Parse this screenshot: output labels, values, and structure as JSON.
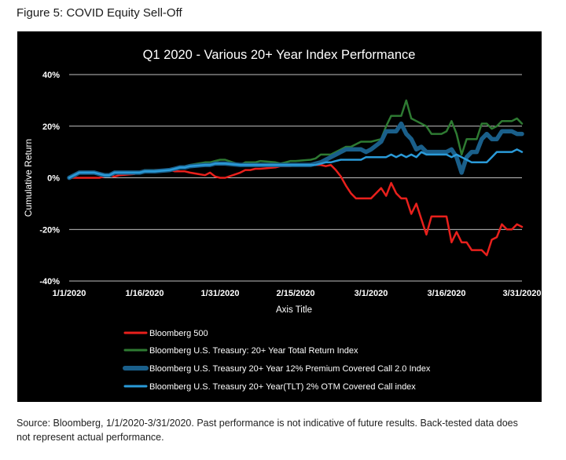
{
  "figure_title": "Figure 5: COVID Equity Sell-Off",
  "source_note": "Source: Bloomberg, 1/1/2020-3/31/2020. Past performance is not indicative of future results. Back-tested data does not represent actual performance.",
  "colors": {
    "background": "#000000",
    "grid": "#ffffff",
    "text": "#ffffff",
    "bloomberg500": "#e8201c",
    "treasury_tr": "#2e7a32",
    "treasury_12pct": "#1a5f8a",
    "treasury_tlt": "#2a9ad8"
  },
  "chart_data": {
    "type": "line",
    "title": "Q1 2020 - Various 20+ Year Index Performance",
    "xlabel": "Axis Title",
    "ylabel": "Cumulative Return",
    "ylim": [
      -40,
      40
    ],
    "yticks": [
      -40,
      -20,
      0,
      20,
      40
    ],
    "ytick_labels": [
      "-40%",
      "-20%",
      "0%",
      "20%",
      "40%"
    ],
    "xlim": [
      0,
      90
    ],
    "xtick_positions": [
      0,
      15,
      30,
      45,
      60,
      75,
      90
    ],
    "xtick_labels": [
      "1/1/2020",
      "1/16/2020",
      "1/31/2020",
      "2/15/2020",
      "3/1/2020",
      "3/16/2020",
      "3/31/2020"
    ],
    "legend_position": "bottom-left",
    "series": [
      {
        "name": "Bloomberg 500",
        "color_key": "bloomberg500",
        "stroke": 2.5,
        "x": [
          0,
          1,
          2,
          5,
          6,
          7,
          8,
          9,
          10,
          13,
          14,
          15,
          16,
          17,
          20,
          21,
          22,
          23,
          24,
          27,
          28,
          29,
          30,
          31,
          34,
          35,
          36,
          37,
          38,
          41,
          42,
          43,
          44,
          45,
          48,
          49,
          50,
          51,
          52,
          53,
          54,
          55,
          56,
          57,
          58,
          59,
          60,
          62,
          63,
          64,
          65,
          66,
          67,
          68,
          69,
          70,
          71,
          72,
          73,
          74,
          75,
          76,
          77,
          78,
          79,
          80,
          81,
          82,
          83,
          84,
          85,
          86,
          87,
          88,
          89,
          90
        ],
        "y": [
          0,
          0,
          0,
          0,
          0,
          0.5,
          1,
          0.5,
          1,
          1.5,
          2,
          2.5,
          2.5,
          3,
          3,
          2.5,
          2.5,
          2.5,
          2,
          1,
          2,
          0.5,
          0,
          0,
          2,
          3,
          3,
          3.5,
          3.5,
          4,
          4.5,
          4.5,
          4.5,
          5,
          5,
          5,
          5,
          4.5,
          5,
          3,
          0.5,
          -3,
          -6,
          -8,
          -8,
          -8,
          -8,
          -4,
          -7,
          -2,
          -6,
          -8,
          -8,
          -14,
          -10,
          -16,
          -22,
          -15,
          -15,
          -15,
          -15,
          -25,
          -21,
          -25,
          -25,
          -28,
          -28,
          -28,
          -30,
          -24,
          -23,
          -18,
          -20,
          -20,
          -18,
          -19
        ]
      },
      {
        "name": "Bloomberg U.S. Treasury: 20+ Year Total Return Index",
        "color_key": "treasury_tr",
        "stroke": 2.5,
        "x": [
          0,
          1,
          2,
          5,
          6,
          7,
          8,
          9,
          10,
          13,
          14,
          15,
          16,
          17,
          20,
          21,
          22,
          23,
          24,
          27,
          28,
          29,
          30,
          31,
          34,
          35,
          36,
          37,
          38,
          41,
          42,
          43,
          44,
          45,
          48,
          49,
          50,
          51,
          52,
          53,
          54,
          55,
          56,
          57,
          58,
          59,
          60,
          62,
          63,
          64,
          65,
          66,
          67,
          68,
          69,
          70,
          71,
          72,
          73,
          74,
          75,
          76,
          77,
          78,
          79,
          80,
          81,
          82,
          83,
          84,
          85,
          86,
          87,
          88,
          89,
          90
        ],
        "y": [
          0,
          1,
          2,
          2,
          1.5,
          1,
          1,
          2,
          2,
          2,
          2,
          3,
          3,
          3,
          3,
          3.5,
          4,
          4.5,
          5,
          6,
          6,
          6.5,
          7,
          7,
          5,
          6,
          6,
          6,
          6.5,
          6,
          5.5,
          6,
          6.5,
          6.5,
          7,
          7.5,
          9,
          9,
          9,
          10,
          11,
          12,
          12,
          13,
          14,
          14,
          14,
          15,
          20,
          24,
          24,
          24,
          30,
          23,
          22,
          21,
          20,
          17,
          17,
          17,
          18,
          22,
          17,
          9,
          15,
          15,
          15,
          21,
          21,
          19,
          20,
          22,
          22,
          22,
          23,
          21
        ]
      },
      {
        "name": "Bloomberg U.S. Treasury 20+ Year 12% Premium Covered Call 2.0 Index",
        "color_key": "treasury_12pct",
        "stroke": 5.5,
        "x": [
          0,
          1,
          2,
          5,
          6,
          7,
          8,
          9,
          10,
          13,
          14,
          15,
          16,
          17,
          20,
          21,
          22,
          23,
          24,
          27,
          28,
          29,
          30,
          31,
          34,
          35,
          36,
          37,
          38,
          41,
          42,
          43,
          44,
          45,
          48,
          49,
          50,
          51,
          52,
          53,
          54,
          55,
          56,
          57,
          58,
          59,
          60,
          62,
          63,
          64,
          65,
          66,
          67,
          68,
          69,
          70,
          71,
          72,
          73,
          74,
          75,
          76,
          77,
          78,
          79,
          80,
          81,
          82,
          83,
          84,
          85,
          86,
          87,
          88,
          89,
          90
        ],
        "y": [
          0,
          1,
          2,
          2,
          1.5,
          1,
          1,
          2,
          2,
          2,
          2,
          2.5,
          2.5,
          2.5,
          3,
          3.5,
          4,
          4,
          4.5,
          5,
          5,
          5.5,
          5.5,
          5.5,
          5,
          5,
          5,
          5,
          5,
          5,
          5,
          5,
          5,
          5,
          5,
          5.5,
          6,
          7,
          8,
          9,
          10,
          11,
          11,
          11,
          11,
          10,
          11,
          14,
          18,
          18,
          18,
          21,
          17,
          15,
          11,
          12,
          10,
          10,
          10,
          10,
          10,
          11,
          8,
          2,
          8,
          10,
          10,
          15,
          17,
          15,
          15,
          18,
          18,
          18,
          17,
          17
        ]
      },
      {
        "name": "Bloomberg U.S. Treasury 20+ Year(TLT) 2% OTM Covered Call index",
        "color_key": "treasury_tlt",
        "stroke": 2.5,
        "x": [
          0,
          1,
          2,
          5,
          6,
          7,
          8,
          9,
          10,
          13,
          14,
          15,
          16,
          17,
          20,
          21,
          22,
          23,
          24,
          27,
          28,
          29,
          30,
          31,
          34,
          35,
          36,
          37,
          38,
          41,
          42,
          43,
          44,
          45,
          48,
          49,
          50,
          51,
          52,
          53,
          54,
          55,
          56,
          57,
          58,
          59,
          60,
          62,
          63,
          64,
          65,
          66,
          67,
          68,
          69,
          70,
          71,
          72,
          73,
          74,
          75,
          76,
          77,
          78,
          79,
          80,
          81,
          82,
          83,
          84,
          85,
          86,
          87,
          88,
          89,
          90
        ],
        "y": [
          0,
          1,
          2,
          2,
          1.5,
          1,
          1,
          2,
          2,
          2,
          2,
          2.5,
          2.5,
          2.5,
          3,
          3.5,
          4,
          4,
          4.5,
          5,
          5,
          5.5,
          5.5,
          5.5,
          5,
          5,
          5,
          5,
          5,
          5,
          5,
          5,
          5,
          5,
          5,
          5,
          5.5,
          6,
          6,
          6.5,
          7,
          7,
          7,
          7,
          7,
          8,
          8,
          8,
          8,
          9,
          8,
          9,
          8,
          9,
          8,
          10,
          9,
          9,
          9,
          9,
          9,
          8,
          9,
          8,
          7,
          6,
          6,
          6,
          6,
          8,
          10,
          10,
          10,
          10,
          11,
          10
        ]
      }
    ]
  }
}
